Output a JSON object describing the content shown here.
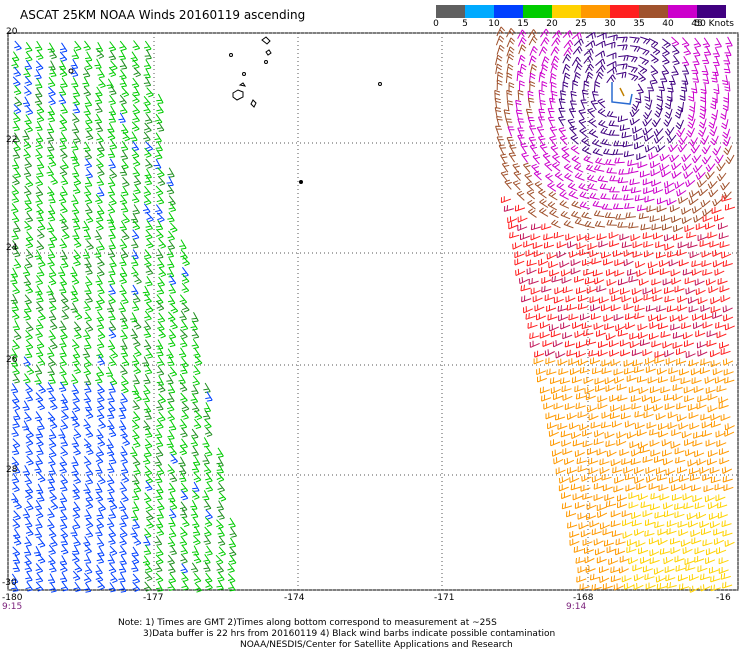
{
  "title": "ASCAT 25KM NOAA Winds 20160119 ascending",
  "legend": {
    "colors": [
      "#606060",
      "#00aaff",
      "#0040ff",
      "#00cc00",
      "#ffd200",
      "#ff9900",
      "#ff2020",
      "#a0522d",
      "#cc00cc",
      "#400080"
    ],
    "labels": [
      "0",
      "5",
      "10",
      "15",
      "20",
      "25",
      "30",
      "35",
      "40",
      "45",
      "50 Knots"
    ]
  },
  "map": {
    "lat_labels": [
      "20",
      "22",
      "24",
      "26",
      "28",
      "-30"
    ],
    "lon_labels": [
      "-180",
      "-177",
      "-174",
      "-171",
      "-168",
      "-16"
    ],
    "left_swath_time": "9:15",
    "right_swath_time": "9:14"
  },
  "notes": {
    "line1": "Note: 1) Times are GMT 2)Times along bottom correspond to measurement at ~25S",
    "line2": "3)Data buffer is 22 hrs from 20160119  4) Black wind barbs indicate possible contamination",
    "line3": "NOAA/NESDIS/Center for Satellite Applications and Research"
  }
}
